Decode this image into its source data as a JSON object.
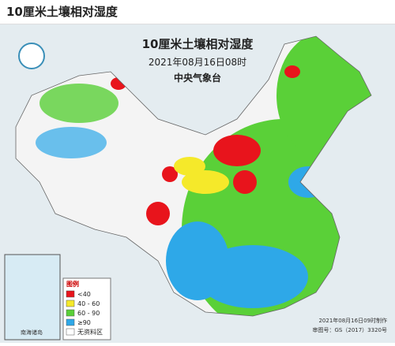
{
  "header": {
    "title": "10厘米土壤相对湿度"
  },
  "map": {
    "title": "10厘米土壤相对湿度",
    "subtitle": "2021年08月16日08时",
    "agency": "中央气象台",
    "inset_label": "南海诸岛",
    "legend": {
      "title": "图例",
      "items": [
        {
          "label": "<40",
          "color": "#e8141c"
        },
        {
          "label": "40 - 60",
          "color": "#f5e92a"
        },
        {
          "label": "60 - 90",
          "color": "#5ad038"
        },
        {
          "label": "≥90",
          "color": "#2ea8e8"
        },
        {
          "label": "无资料区",
          "color": "#ffffff"
        }
      ]
    },
    "footer": [
      "2021年08月16日09时制作",
      "审图号：GS（2017）3320号"
    ]
  }
}
